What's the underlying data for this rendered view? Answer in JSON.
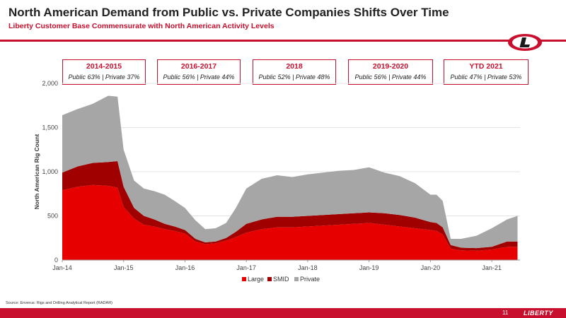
{
  "header": {
    "title": "North American Demand from Public vs. Private Companies Shifts Over Time",
    "subtitle": "Liberty Customer Base Commensurate with North American Activity Levels"
  },
  "periods": [
    {
      "title": "2014-2015",
      "split": "Public 63% | Private 37%"
    },
    {
      "title": "2016-2017",
      "split": "Public 56% | Private 44%"
    },
    {
      "title": "2018",
      "split": "Public 52% | Private 48%"
    },
    {
      "title": "2019-2020",
      "split": "Public 56% | Private 44%"
    },
    {
      "title": "YTD 2021",
      "split": "Public 47% | Private 53%"
    }
  ],
  "footer": {
    "source": "Source: Enverus: Rigs and Drilling Analytical Report (RADAR)",
    "page": "11",
    "brand": "LIBERTY"
  },
  "colors": {
    "brand_red": "#c8102e",
    "large": "#e60000",
    "smid": "#a00000",
    "private": "#a6a6a6"
  },
  "chart_data": {
    "type": "area",
    "stacked": true,
    "ylabel": "North American Rig Count",
    "xlabel": "",
    "ylim": [
      0,
      2000
    ],
    "yticks": [
      0,
      500,
      1000,
      1500,
      2000
    ],
    "ytick_labels": [
      "0",
      "500",
      "1,000",
      "1,500",
      "2,000"
    ],
    "xticks": [
      2014.0,
      2015.0,
      2016.0,
      2017.0,
      2018.0,
      2019.0,
      2020.0,
      2021.0
    ],
    "xtick_labels": [
      "Jan-14",
      "Jan-15",
      "Jan-16",
      "Jan-17",
      "Jan-18",
      "Jan-19",
      "Jan-20",
      "Jan-21"
    ],
    "grid": true,
    "legend": "bottom",
    "x": [
      2014.0,
      2014.25,
      2014.5,
      2014.75,
      2014.9,
      2015.0,
      2015.17,
      2015.33,
      2015.5,
      2015.67,
      2015.83,
      2016.0,
      2016.17,
      2016.33,
      2016.5,
      2016.67,
      2016.83,
      2017.0,
      2017.25,
      2017.5,
      2017.75,
      2018.0,
      2018.25,
      2018.5,
      2018.75,
      2019.0,
      2019.25,
      2019.5,
      2019.75,
      2020.0,
      2020.1,
      2020.2,
      2020.33,
      2020.5,
      2020.75,
      2021.0,
      2021.25,
      2021.42
    ],
    "series": [
      {
        "name": "Large",
        "values": [
          790,
          830,
          850,
          840,
          820,
          600,
          470,
          400,
          380,
          350,
          330,
          300,
          210,
          180,
          190,
          220,
          260,
          310,
          350,
          370,
          370,
          380,
          390,
          400,
          410,
          420,
          400,
          380,
          360,
          340,
          330,
          290,
          130,
          110,
          105,
          120,
          150,
          150
        ]
      },
      {
        "name": "SMID",
        "values": [
          200,
          230,
          250,
          270,
          300,
          230,
          120,
          100,
          80,
          60,
          50,
          40,
          30,
          20,
          20,
          30,
          60,
          100,
          110,
          120,
          120,
          120,
          120,
          120,
          120,
          120,
          130,
          130,
          120,
          90,
          90,
          80,
          40,
          30,
          30,
          30,
          60,
          60
        ]
      },
      {
        "name": "Private",
        "values": [
          650,
          650,
          670,
          750,
          730,
          420,
          310,
          310,
          320,
          330,
          290,
          250,
          210,
          150,
          150,
          170,
          270,
          400,
          460,
          470,
          450,
          470,
          480,
          490,
          490,
          510,
          460,
          440,
          390,
          310,
          320,
          300,
          70,
          100,
          140,
          210,
          250,
          290
        ]
      }
    ]
  }
}
